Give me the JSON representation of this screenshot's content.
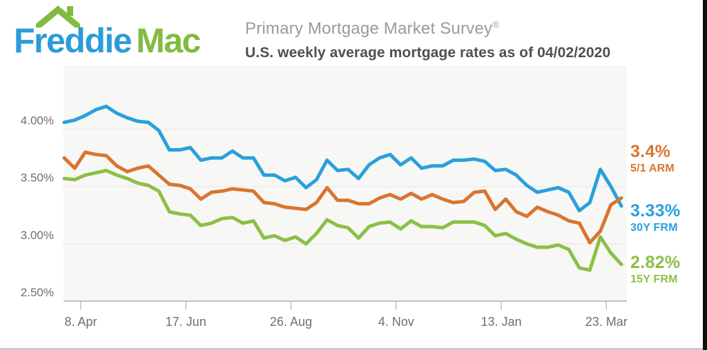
{
  "brand": {
    "logo_text_primary": "Freddie",
    "logo_text_secondary": "Mac",
    "logo_blue": "#2b9cd8",
    "logo_green": "#83bb41",
    "roof_icon": "house-roof"
  },
  "header": {
    "title": "Primary Mortgage Market Survey",
    "title_reg_mark": "®",
    "subtitle": "U.S. weekly average mortgage rates as of 04/02/2020"
  },
  "chart_data": {
    "type": "line",
    "title": "U.S. weekly average mortgage rates as of 04/02/2020",
    "xlabel": "",
    "ylabel": "",
    "grid": true,
    "legend_position": "right-end-labels",
    "plot_bg": "#f7f7f6",
    "grid_color": "#e5e5e5",
    "axis_color": "#b7c3cb",
    "label_color": "#6f6f6f",
    "ylim": [
      2.5,
      4.545
    ],
    "y_ticks": [
      {
        "label": "4.00%",
        "value": 4.0
      },
      {
        "label": "3.50%",
        "value": 3.5
      },
      {
        "label": "3.00%",
        "value": 3.0
      },
      {
        "label": "2.50%",
        "value": 2.5
      }
    ],
    "x_ticks": [
      {
        "label": "8. Apr",
        "day": 11
      },
      {
        "label": "17. Jun",
        "day": 81
      },
      {
        "label": "26. Aug",
        "day": 151
      },
      {
        "label": "4. Nov",
        "day": 221
      },
      {
        "label": "13. Jan",
        "day": 291
      },
      {
        "label": "23. Mar",
        "day": 361
      }
    ],
    "total_days": 371,
    "interval_days": 7,
    "series": [
      {
        "name": "5/1 ARM",
        "end_label": "3.4%",
        "color": "#d9752e",
        "values": [
          3.75,
          3.66,
          3.8,
          3.78,
          3.77,
          3.68,
          3.63,
          3.66,
          3.68,
          3.6,
          3.52,
          3.51,
          3.48,
          3.39,
          3.45,
          3.46,
          3.48,
          3.47,
          3.46,
          3.36,
          3.35,
          3.32,
          3.31,
          3.3,
          3.36,
          3.49,
          3.38,
          3.38,
          3.35,
          3.35,
          3.4,
          3.43,
          3.39,
          3.44,
          3.39,
          3.43,
          3.39,
          3.36,
          3.37,
          3.45,
          3.46,
          3.3,
          3.39,
          3.28,
          3.24,
          3.32,
          3.28,
          3.25,
          3.2,
          3.18,
          3.01,
          3.11,
          3.34,
          3.4
        ]
      },
      {
        "name": "30Y FRM",
        "end_label": "3.33%",
        "color": "#2aa0da",
        "values": [
          4.06,
          4.08,
          4.12,
          4.17,
          4.2,
          4.14,
          4.1,
          4.07,
          4.06,
          3.99,
          3.82,
          3.82,
          3.84,
          3.73,
          3.75,
          3.75,
          3.81,
          3.75,
          3.75,
          3.6,
          3.6,
          3.55,
          3.58,
          3.49,
          3.56,
          3.73,
          3.64,
          3.65,
          3.57,
          3.69,
          3.75,
          3.78,
          3.69,
          3.75,
          3.66,
          3.68,
          3.68,
          3.73,
          3.73,
          3.74,
          3.72,
          3.64,
          3.65,
          3.6,
          3.51,
          3.45,
          3.47,
          3.49,
          3.45,
          3.29,
          3.36,
          3.65,
          3.5,
          3.33
        ]
      },
      {
        "name": "15Y FRM",
        "end_label": "2.82%",
        "color": "#8cbf45",
        "values": [
          3.57,
          3.56,
          3.6,
          3.62,
          3.64,
          3.6,
          3.57,
          3.53,
          3.51,
          3.46,
          3.28,
          3.26,
          3.25,
          3.16,
          3.18,
          3.22,
          3.23,
          3.18,
          3.2,
          3.05,
          3.07,
          3.03,
          3.06,
          3.0,
          3.09,
          3.21,
          3.16,
          3.14,
          3.05,
          3.15,
          3.18,
          3.19,
          3.13,
          3.2,
          3.15,
          3.15,
          3.14,
          3.19,
          3.19,
          3.19,
          3.16,
          3.07,
          3.09,
          3.04,
          3.0,
          2.97,
          2.97,
          2.99,
          2.95,
          2.79,
          2.77,
          3.06,
          2.92,
          2.82
        ]
      }
    ]
  }
}
